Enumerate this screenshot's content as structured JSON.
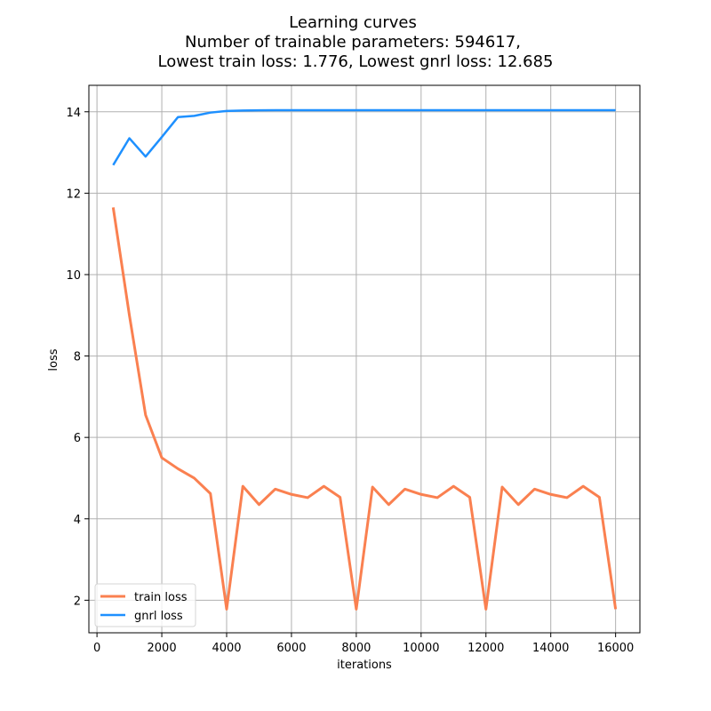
{
  "chart_data": {
    "type": "line",
    "title_lines": [
      "Learning curves",
      "Number of trainable parameters: 594617,",
      "Lowest train loss: 1.776, Lowest gnrl loss: 12.685"
    ],
    "xlabel": "iterations",
    "ylabel": "loss",
    "xlim": [
      -250,
      16750
    ],
    "ylim": [
      1.2,
      14.65
    ],
    "xticks": [
      0,
      2000,
      4000,
      6000,
      8000,
      10000,
      12000,
      14000,
      16000
    ],
    "yticks": [
      2,
      4,
      6,
      8,
      10,
      12,
      14
    ],
    "grid": true,
    "legend_position": "lower-left",
    "x": [
      500,
      1000,
      1500,
      2000,
      2500,
      3000,
      3500,
      4000,
      4500,
      5000,
      5500,
      6000,
      6500,
      7000,
      7500,
      8000,
      8500,
      9000,
      9500,
      10000,
      10500,
      11000,
      11500,
      12000,
      12500,
      13000,
      13500,
      14000,
      14500,
      15000,
      15500,
      16000
    ],
    "series": [
      {
        "name": "train loss",
        "color": "#fa8050",
        "values": [
          11.65,
          9.0,
          6.55,
          5.5,
          5.23,
          5.0,
          4.62,
          1.78,
          4.8,
          4.35,
          4.73,
          4.6,
          4.52,
          4.8,
          4.53,
          1.78,
          4.78,
          4.35,
          4.73,
          4.6,
          4.52,
          4.8,
          4.53,
          1.78,
          4.78,
          4.35,
          4.73,
          4.6,
          4.52,
          4.8,
          4.53,
          1.78
        ]
      },
      {
        "name": "gnrl loss",
        "color": "#1e90ff",
        "values": [
          12.69,
          13.35,
          12.9,
          13.38,
          13.87,
          13.9,
          13.98,
          14.02,
          14.03,
          14.035,
          14.04,
          14.04,
          14.04,
          14.04,
          14.04,
          14.04,
          14.04,
          14.04,
          14.04,
          14.04,
          14.04,
          14.04,
          14.04,
          14.04,
          14.04,
          14.04,
          14.04,
          14.04,
          14.04,
          14.04,
          14.04,
          14.04
        ]
      }
    ]
  }
}
